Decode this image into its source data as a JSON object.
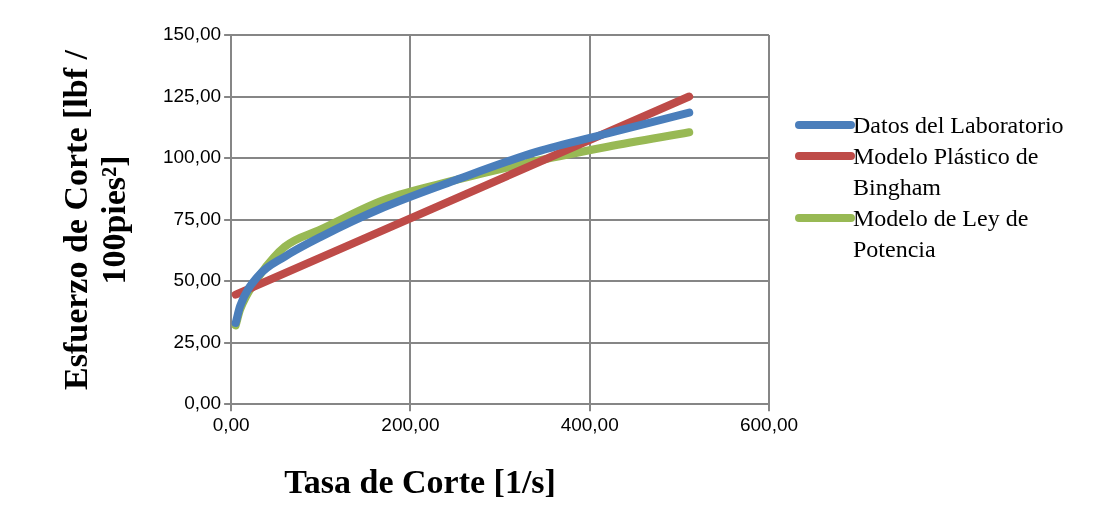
{
  "chart_data": {
    "type": "line",
    "xlabel": "Tasa de Corte [1/s]",
    "ylabel": "Esfuerzo de Corte [lbf / 100pies²]",
    "xlim": [
      0,
      600
    ],
    "xticks": [
      {
        "value": 0,
        "label": "0,00"
      },
      {
        "value": 200,
        "label": "200,00"
      },
      {
        "value": 400,
        "label": "400,00"
      },
      {
        "value": 600,
        "label": "600,00"
      }
    ],
    "ylim": [
      0,
      150
    ],
    "yticks": [
      {
        "value": 0,
        "label": "0,00"
      },
      {
        "value": 25,
        "label": "25,00"
      },
      {
        "value": 50,
        "label": "50,00"
      },
      {
        "value": 75,
        "label": "75,00"
      },
      {
        "value": 100,
        "label": "100,00"
      },
      {
        "value": 125,
        "label": "125,00"
      },
      {
        "value": 150,
        "label": "150,00"
      }
    ],
    "grid": true,
    "legend": "right",
    "marker": "none",
    "line_style": "solid",
    "series": [
      {
        "name": "Datos del Laboratorio",
        "color": "#4a7ebb",
        "x": [
          5.11,
          10.22,
          30,
          60,
          100,
          170.3,
          250,
          340.6,
          420,
          511
        ],
        "values": [
          33,
          40,
          52,
          60,
          68,
          80,
          91,
          102.5,
          110,
          118.5
        ]
      },
      {
        "name": "Modelo Plástico de Bingham",
        "color": "#be4b48",
        "x": [
          5.11,
          511
        ],
        "values": [
          44.5,
          125
        ]
      },
      {
        "name": "Modelo de Ley de Potencia",
        "color": "#98b954",
        "x": [
          5.11,
          10.22,
          30,
          60,
          100,
          170.3,
          250,
          340.6,
          420,
          511
        ],
        "values": [
          32,
          38.6,
          51.4,
          64,
          71,
          83,
          91,
          98.8,
          104.6,
          110.5
        ]
      }
    ]
  }
}
